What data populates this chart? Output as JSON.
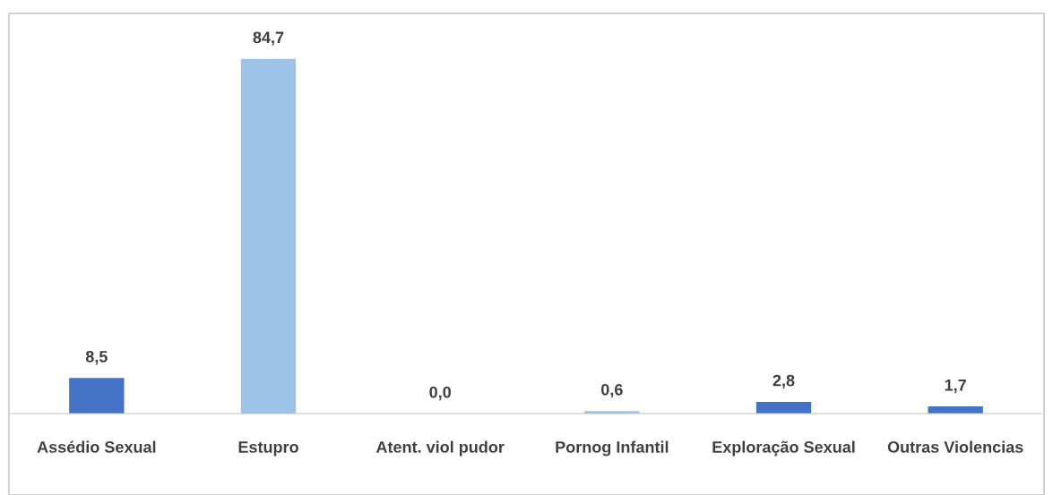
{
  "chart_data": {
    "type": "bar",
    "categories": [
      "Assédio Sexual",
      "Estupro",
      "Atent. viol pudor",
      "Pornog Infantil",
      "Exploração Sexual",
      "Outras Violencias"
    ],
    "values": [
      8.5,
      84.7,
      0.0,
      0.6,
      2.8,
      1.7
    ],
    "value_labels": [
      "8,5",
      "84,7",
      "0,0",
      "0,6",
      "2,8",
      "1,7"
    ],
    "colors": [
      "#4472c4",
      "#9dc3e6",
      "#4472c4",
      "#9dc3e6",
      "#4472c4",
      "#4472c4"
    ],
    "grid": false,
    "legend": false
  }
}
